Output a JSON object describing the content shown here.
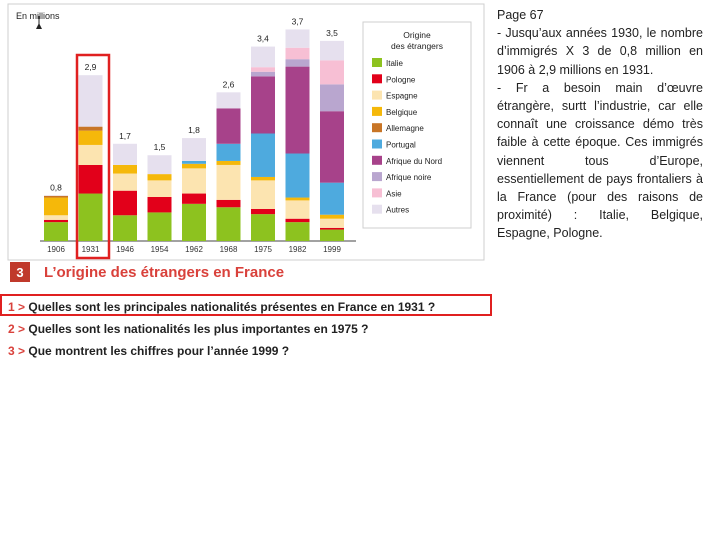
{
  "caption": {
    "number": "3",
    "title": "L’origine des étrangers en France"
  },
  "questions": [
    {
      "num": "1 >",
      "text": "Quelles sont les principales nationalités présentes en France en 1931 ?"
    },
    {
      "num": "2 >",
      "text": "Quelles sont les nationalités les plus importantes en 1975 ?"
    },
    {
      "num": "3 >",
      "text": "Que montrent les chiffres pour l’année 1999 ?"
    }
  ],
  "notes": {
    "heading": "Page 67",
    "paragraph1": "- Jusqu’aux années 1930, le nombre d’immigrés X 3 de 0,8 million en 1906 à 2,9 millions en 1931.",
    "paragraph2": "- Fr a besoin main d’œuvre étrangère, surtt l’industrie, car elle connaît une croissance démo très faible à cette époque. Ces immigrés viennent tous d’Europe, essentiellement de pays frontaliers à la France (pour des raisons de proximité) : Italie, Belgique, Espagne, Pologne."
  },
  "chart_data": {
    "type": "bar",
    "stacked": true,
    "unit_label": "En millions",
    "legend_title": "Origine des étrangers",
    "legend_placement": "right",
    "highlighted_category": "1931",
    "categories": [
      "1906",
      "1931",
      "1946",
      "1954",
      "1962",
      "1968",
      "1975",
      "1982",
      "1999"
    ],
    "totals": [
      "0,8",
      "2,9",
      "1,7",
      "1,5",
      "1,8",
      "2,6",
      "3,4",
      "3,7",
      "3,5"
    ],
    "ylim": [
      0,
      3.9
    ],
    "series": [
      {
        "name": "Italie",
        "color": "#8dc21f",
        "values": [
          0.33,
          0.83,
          0.45,
          0.5,
          0.65,
          0.59,
          0.47,
          0.33,
          0.2
        ]
      },
      {
        "name": "Pologne",
        "color": "#e2001a",
        "values": [
          0.04,
          0.5,
          0.43,
          0.27,
          0.18,
          0.13,
          0.09,
          0.06,
          0.03
        ]
      },
      {
        "name": "Espagne",
        "color": "#fce4b0",
        "values": [
          0.08,
          0.35,
          0.3,
          0.29,
          0.44,
          0.61,
          0.5,
          0.32,
          0.16
        ]
      },
      {
        "name": "Belgique",
        "color": "#f5b80a",
        "values": [
          0.31,
          0.25,
          0.15,
          0.11,
          0.08,
          0.07,
          0.06,
          0.05,
          0.07
        ]
      },
      {
        "name": "Allemagne",
        "color": "#c87526",
        "values": [
          0.03,
          0.07,
          0.0,
          0.0,
          0.0,
          0.0,
          0.0,
          0.0,
          0.0
        ]
      },
      {
        "name": "Portugal",
        "color": "#4eaade",
        "values": [
          0.0,
          0.0,
          0.0,
          0.0,
          0.05,
          0.3,
          0.76,
          0.77,
          0.56
        ]
      },
      {
        "name": "Afrique du Nord",
        "color": "#a7428a",
        "values": [
          0.0,
          0.0,
          0.0,
          0.0,
          0.0,
          0.62,
          1.0,
          1.52,
          1.25
        ]
      },
      {
        "name": "Afrique noire",
        "color": "#b9a6cf",
        "values": [
          0.0,
          0.0,
          0.0,
          0.0,
          0.0,
          0.0,
          0.08,
          0.13,
          0.47
        ]
      },
      {
        "name": "Asie",
        "color": "#f7bfd4",
        "values": [
          0.0,
          0.0,
          0.0,
          0.0,
          0.0,
          0.0,
          0.08,
          0.2,
          0.42
        ]
      },
      {
        "name": "Autres",
        "color": "#e6e0ee",
        "values": [
          0.01,
          0.9,
          0.37,
          0.33,
          0.4,
          0.28,
          0.36,
          0.32,
          0.34
        ]
      }
    ]
  }
}
